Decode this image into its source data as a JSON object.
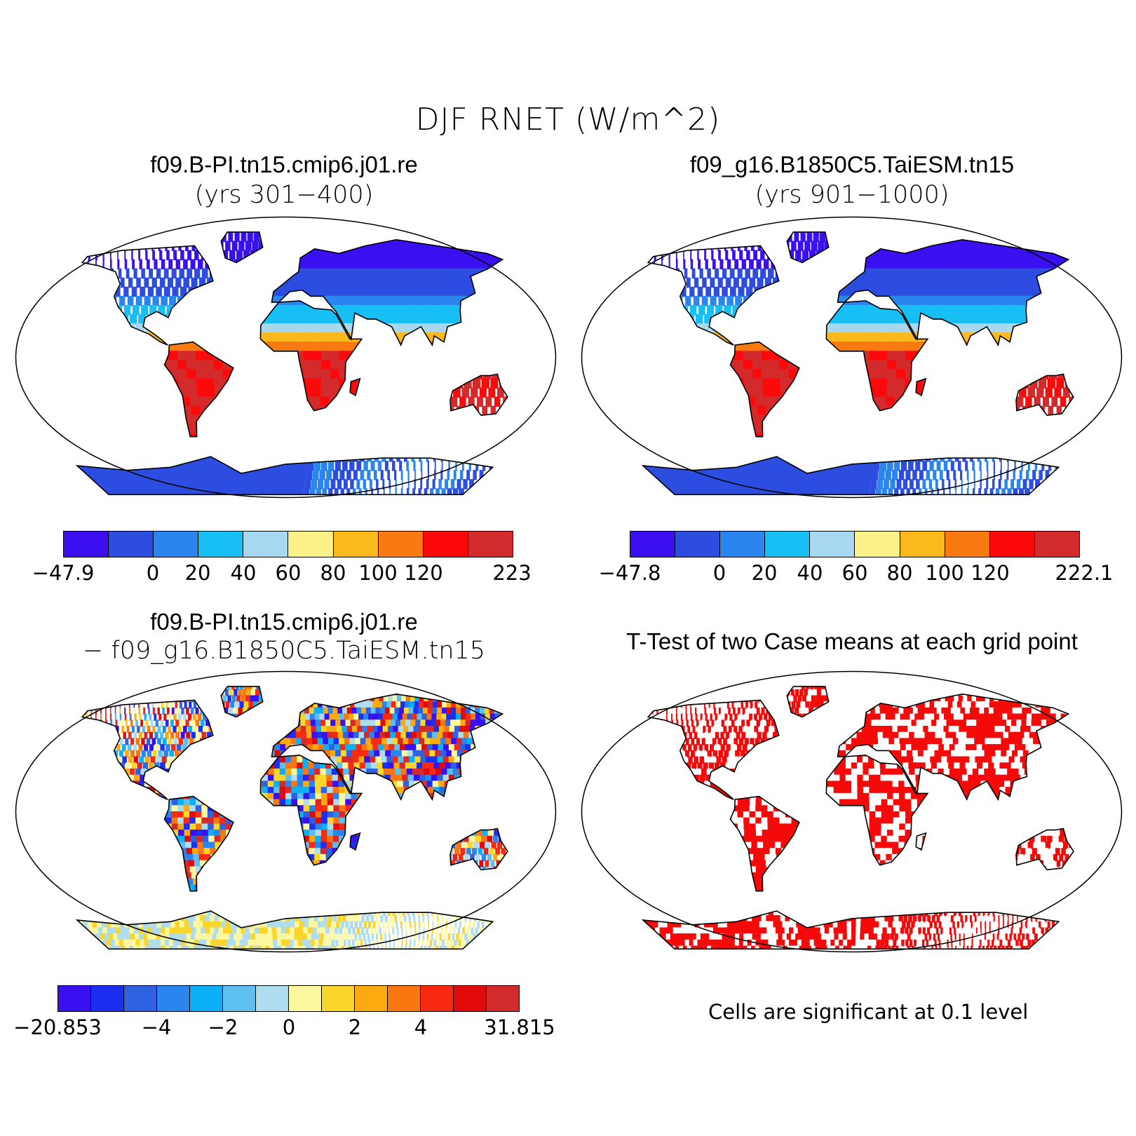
{
  "figure": {
    "title": "DJF RNET (W/m^2)"
  },
  "panels": [
    {
      "title": "f09.B-PI.tn15.cmip6.j01.re",
      "subtitle": "(yrs 301−400)",
      "colorbar": {
        "colors": [
          "#3a10f0",
          "#2c4de0",
          "#2a85ee",
          "#18bff5",
          "#a8d8f0",
          "#fbf188",
          "#fbb91c",
          "#f97a10",
          "#fa0a0a",
          "#d32b2b"
        ],
        "tick_labels": [
          "−47.9",
          "0",
          "20",
          "40",
          "60",
          "80",
          "100",
          "120",
          "223"
        ]
      }
    },
    {
      "title": "f09_g16.B1850C5.TaiESM.tn15",
      "subtitle": "(yrs 901−1000)",
      "colorbar": {
        "colors": [
          "#3a10f0",
          "#2c4de0",
          "#2a85ee",
          "#18bff5",
          "#a8d8f0",
          "#fbf188",
          "#fbb91c",
          "#f97a10",
          "#fa0a0a",
          "#d32b2b"
        ],
        "tick_labels": [
          "−47.8",
          "0",
          "20",
          "40",
          "60",
          "80",
          "100",
          "120",
          "222.1"
        ]
      }
    },
    {
      "title": "f09.B-PI.tn15.cmip6.j01.re",
      "subtitle": "− f09_g16.B1850C5.TaiESM.tn15",
      "colorbar": {
        "colors": [
          "#3a10f0",
          "#1c2ef0",
          "#2f62e0",
          "#2a85ee",
          "#0bb0f6",
          "#5ec0f0",
          "#b0dcf0",
          "#fdf7a0",
          "#fad52a",
          "#fbaa10",
          "#f97710",
          "#f92a10",
          "#e00a0a",
          "#d32b2b"
        ],
        "tick_labels": [
          "−20.853",
          "−4",
          "−2",
          "0",
          "2",
          "4",
          "31.815"
        ]
      }
    },
    {
      "title": "T-Test of two Case means at each grid point",
      "note": "Cells are significant at 0.1 level",
      "significant_color": "#f50a0a"
    }
  ]
}
